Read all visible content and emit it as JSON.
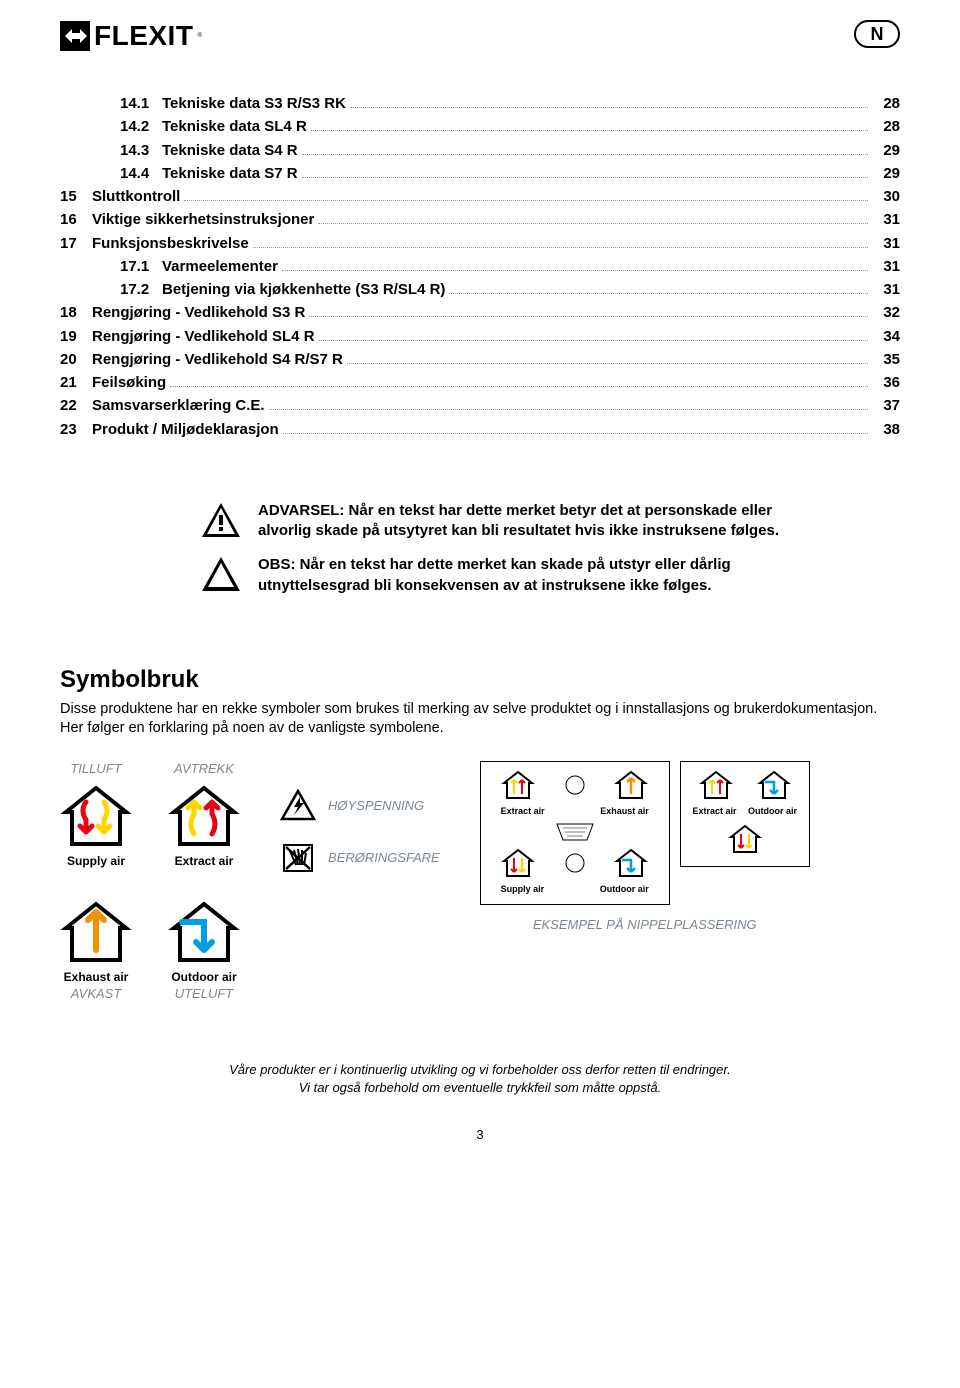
{
  "header": {
    "logo_text": "FLEXIT",
    "badge": "N"
  },
  "toc": [
    {
      "indent": "sub",
      "num": "14.1",
      "label": "Tekniske data S3 R/S3 RK",
      "page": "28"
    },
    {
      "indent": "sub",
      "num": "14.2",
      "label": "Tekniske data SL4 R",
      "page": "28"
    },
    {
      "indent": "sub",
      "num": "14.3",
      "label": "Tekniske data S4 R",
      "page": "29"
    },
    {
      "indent": "sub",
      "num": "14.4",
      "label": "Tekniske data S7 R",
      "page": "29"
    },
    {
      "indent": "main",
      "num": "15",
      "label": "Sluttkontroll",
      "page": "30"
    },
    {
      "indent": "main",
      "num": "16",
      "label": "Viktige sikkerhetsinstruksjoner",
      "page": "31"
    },
    {
      "indent": "main",
      "num": "17",
      "label": "Funksjonsbeskrivelse",
      "page": "31"
    },
    {
      "indent": "sub",
      "num": "17.1",
      "label": "Varmeelementer",
      "page": "31"
    },
    {
      "indent": "sub",
      "num": "17.2",
      "label": "Betjening via kjøkkenhette (S3 R/SL4 R)",
      "page": "31"
    },
    {
      "indent": "main",
      "num": "18",
      "label": "Rengjøring - Vedlikehold S3 R",
      "page": "32"
    },
    {
      "indent": "main",
      "num": "19",
      "label": "Rengjøring - Vedlikehold SL4 R",
      "page": "34"
    },
    {
      "indent": "main",
      "num": "20",
      "label": "Rengjøring - Vedlikehold S4 R/S7 R",
      "page": "35"
    },
    {
      "indent": "main",
      "num": "21",
      "label": "Feilsøking",
      "page": "36"
    },
    {
      "indent": "main",
      "num": "22",
      "label": "Samsvarserklæring C.E.",
      "page": "37"
    },
    {
      "indent": "main",
      "num": "23",
      "label": "Produkt / Miljødeklarasjon",
      "page": "38"
    }
  ],
  "warnings": {
    "advarsel": "ADVARSEL:  Når en tekst har dette merket betyr det at personskade eller alvorlig skade på utsytyret kan bli resultatet hvis ikke instruksene følges.",
    "obs": "OBS: Når en tekst har dette merket kan skade på utstyr eller dårlig utnyttelsesgrad  bli konsekvensen av at instruksene ikke følges."
  },
  "symbolbruk": {
    "title": "Symbolbruk",
    "desc": "Disse produktene har en rekke symboler som brukes til merking av selve produktet og i innstallasjons og brukerdokumentasjon. Her følger en forklaring på noen av de vanligste symbolene.",
    "labels": {
      "tilluft": "TILLUFT",
      "avtrekk": "AVTREKK",
      "avkast": "AVKAST",
      "uteluft": "UTELUFT",
      "supply_air": "Supply air",
      "extract_air": "Extract air",
      "exhaust_air": "Exhaust air",
      "outdoor_air": "Outdoor air",
      "hoyspenning": "HØYSPENNING",
      "beroringsfare": "BERØRINGSFARE",
      "nipple_caption": "EKSEMPEL PÅ NIPPELPLASSERING"
    }
  },
  "colors": {
    "red": "#e30613",
    "yellow": "#ffd500",
    "orange": "#f39200",
    "blue": "#009fe3",
    "gray": "#7b8894",
    "black": "#000000"
  },
  "footer": {
    "line1": "Våre produkter er i kontinuerlig utvikling og vi forbeholder oss derfor retten til endringer.",
    "line2": "Vi tar også forbehold om eventuelle trykkfeil som måtte oppstå.",
    "page": "3"
  }
}
